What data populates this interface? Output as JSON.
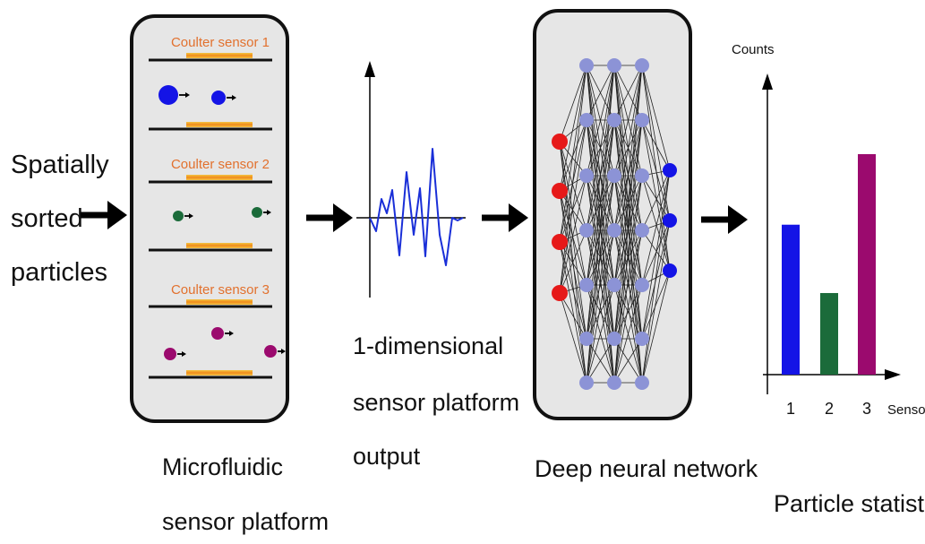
{
  "input_label": [
    "Spatially",
    "sorted",
    "particles"
  ],
  "microfluidic": {
    "caption": [
      "Microfluidic",
      "sensor platform"
    ],
    "sensors": [
      {
        "label": "Coulter sensor 1",
        "color": "#1414e6"
      },
      {
        "label": "Coulter sensor 2",
        "color": "#1b6b3a"
      },
      {
        "label": "Coulter sensor 3",
        "color": "#9b0a6e"
      }
    ]
  },
  "signal": {
    "caption": [
      "1-dimensional",
      "sensor platform",
      "output"
    ],
    "color": "#1a2fd8"
  },
  "network": {
    "caption": "Deep neural network",
    "input_color": "#e61919",
    "hidden_color": "#8c93d6",
    "output_color": "#1414e6"
  },
  "stats": {
    "caption": "Particle statistics",
    "chart_data": {
      "type": "bar",
      "categories": [
        "1",
        "2",
        "3"
      ],
      "values": [
        68,
        37,
        100
      ],
      "colors": [
        "#1414e6",
        "#1b6b3a",
        "#9b0a6e"
      ],
      "ylabel": "Counts",
      "xlabel": "Sensor"
    }
  }
}
